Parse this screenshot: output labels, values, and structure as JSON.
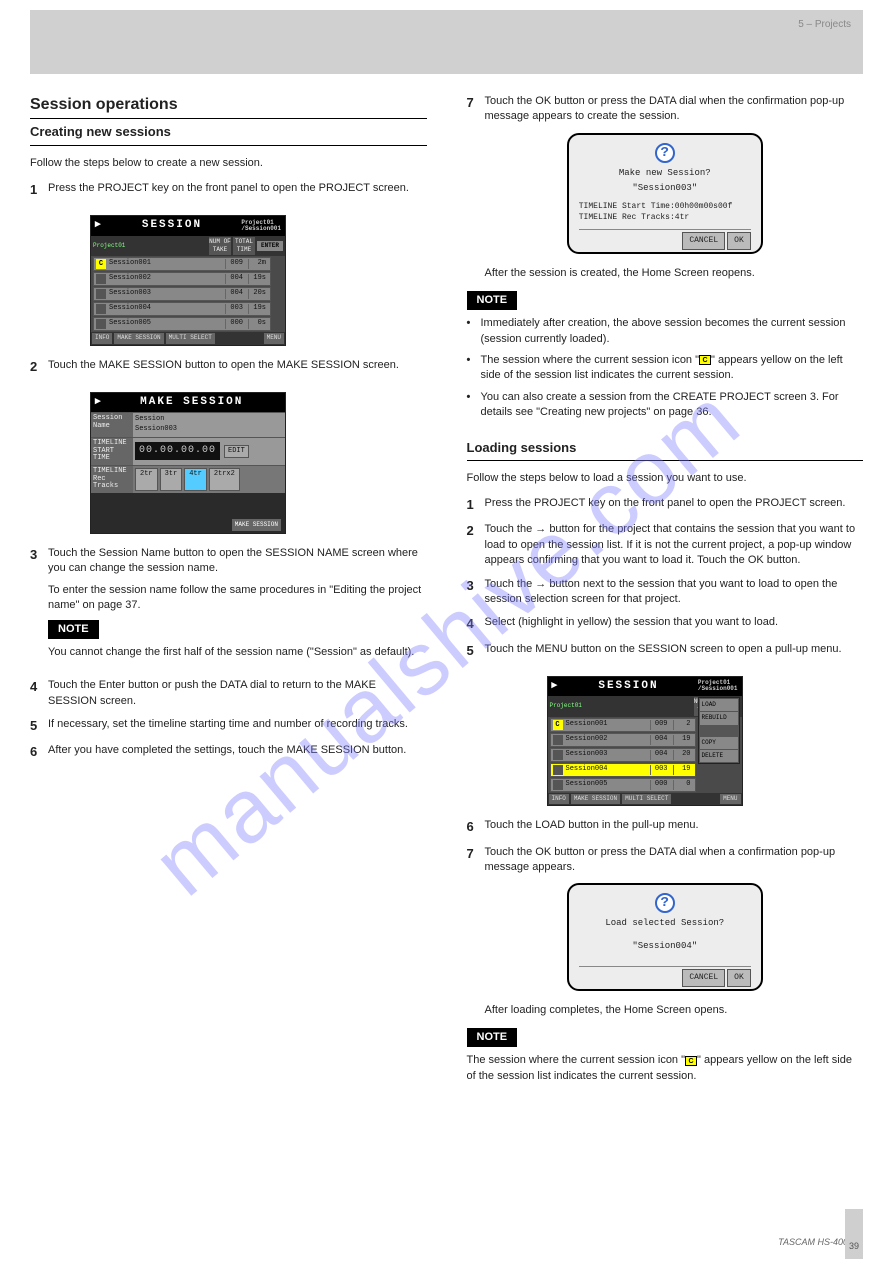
{
  "header": {
    "chapter": "5 – Projects",
    "model": "TASCAM HS-4000"
  },
  "footer": {
    "text": "TASCAM  HS-4000",
    "page": "39"
  },
  "left": {
    "h1": "Session operations",
    "h2": "Creating new sessions",
    "intro": "Follow the steps below to create a new session.",
    "step1": {
      "title": "Press the PROJECT key on the front panel to open the PROJECT screen.",
      "session_screen": {
        "title": "SESSION",
        "bc1": "Project01",
        "bc2": "Session001",
        "proj": "Project01",
        "colh1": "NUM OF TAKE",
        "colh2": "TOTAL TIME",
        "enter": "ENTER",
        "rows": [
          {
            "c": true,
            "name": "Session001",
            "n": "009",
            "t": "2m"
          },
          {
            "c": false,
            "name": "Session002",
            "n": "004",
            "t": "19s"
          },
          {
            "c": false,
            "name": "Session003",
            "n": "004",
            "t": "20s"
          },
          {
            "c": false,
            "name": "Session004",
            "n": "003",
            "t": "19s"
          },
          {
            "c": false,
            "name": "Session005",
            "n": "000",
            "t": "0s"
          }
        ],
        "bottom": [
          "INFO",
          "MAKE SESSION",
          "MULTI SELECT",
          "MENU"
        ]
      }
    },
    "step2": "Touch the MAKE SESSION button to open the MAKE SESSION screen.",
    "make_session": {
      "title": "MAKE SESSION",
      "name_lbl": "Session Name",
      "name_top": "Session",
      "name_val": "Session003",
      "start_lbl": "TIMELINE START TIME",
      "start_val": "00.00.00.00",
      "edit": "EDIT",
      "tracks_lbl": "TIMELINE Rec Tracks",
      "opts": [
        "2tr",
        "3tr",
        "4tr",
        "2trx2"
      ],
      "sel_idx": 2,
      "mk": "MAKE SESSION"
    },
    "step3": "Touch the Session Name button to open the SESSION NAME screen where you can change the session name.",
    "step3b": "To enter the session name follow the same procedures in \"Editing the project name\" on page 37.",
    "note_hdr": "NOTE",
    "note_body": "You cannot change the first half of the session name (\"Session\" as default).",
    "step4": "Touch the Enter button or push the DATA dial to return to the MAKE SESSION screen.",
    "step5": "If necessary, set the timeline starting time and number of recording tracks.",
    "step6": "After you have completed the settings, touch the MAKE SESSION button."
  },
  "right": {
    "step7": "Touch the OK button or press the DATA dial when the confirmation pop-up message appears to create the session.",
    "dlg1": {
      "q1": "Make new Session?",
      "q2": "\"Session003\"",
      "l1": "TIMELINE Start Time:00h00m00s00f",
      "l2": "TIMELINE Rec Tracks:4tr",
      "cancel": "CANCEL",
      "ok": "OK"
    },
    "after": "After the session is created, the Home Screen reopens.",
    "note_hdr": "NOTE",
    "notes": [
      "Immediately after creation, the above session becomes the current session (session currently loaded).",
      "The session where the current session icon \"  \" appears yellow on the left side of the session list indicates the current session.",
      "You can also create a session from the CREATE PROJECT screen 3. For details see \"Creating new projects\" on page 36."
    ],
    "c_label": "C",
    "h2b": "Loading sessions",
    "loadintro": "Follow the steps below to load a session you want to use.",
    "ld1": "Press the PROJECT key on the front panel to open the PROJECT screen.",
    "ld2": "Touch the → button for the project that contains the session that you want to load to open the session list. If it is not the current project, a pop-up window appears confirming that you want to load it. Touch the OK button.",
    "ld3": "Touch the → button next to the session that you want to load to open the session selection screen for that project.",
    "ld4": "Select (highlight in yellow) the session that you want to load.",
    "ld5": "Touch the MENU button on the SESSION screen to open a pull-up menu.",
    "session_screen2": {
      "title": "SESSION",
      "bc1": "Project01",
      "bc2": "Session001",
      "proj": "Project01",
      "colh1": "NUM OF TAKE",
      "colh2": "TOTAL TIME",
      "rows": [
        {
          "c": true,
          "name": "Session001",
          "n": "009",
          "t": "2",
          "lit": false
        },
        {
          "c": false,
          "name": "Session002",
          "n": "004",
          "t": "19",
          "lit": false
        },
        {
          "c": false,
          "name": "Session003",
          "n": "004",
          "t": "20",
          "lit": false
        },
        {
          "c": false,
          "name": "Session004",
          "n": "003",
          "t": "19",
          "lit": true
        },
        {
          "c": false,
          "name": "Session005",
          "n": "000",
          "t": "0",
          "lit": false
        }
      ],
      "bottom": [
        "INFO",
        "MAKE SESSION",
        "MULTI SELECT",
        "MENU"
      ],
      "menu": [
        "LOAD",
        "REBUILD",
        "COPY",
        "DELETE"
      ]
    },
    "ld6": "Touch the LOAD button in the pull-up menu.",
    "ld7": "Touch the OK button or press the DATA dial when a confirmation pop-up message appears.",
    "dlg2": {
      "q1": "Load selected Session?",
      "q2": "\"Session004\"",
      "cancel": "CANCEL",
      "ok": "OK"
    },
    "after2": "After loading completes, the Home Screen opens.",
    "note2_hdr": "NOTE",
    "note2_body": "The session where the current session icon \"  \" appears yellow on the left side of the session list indicates the current session.",
    "c_label2": "C"
  }
}
